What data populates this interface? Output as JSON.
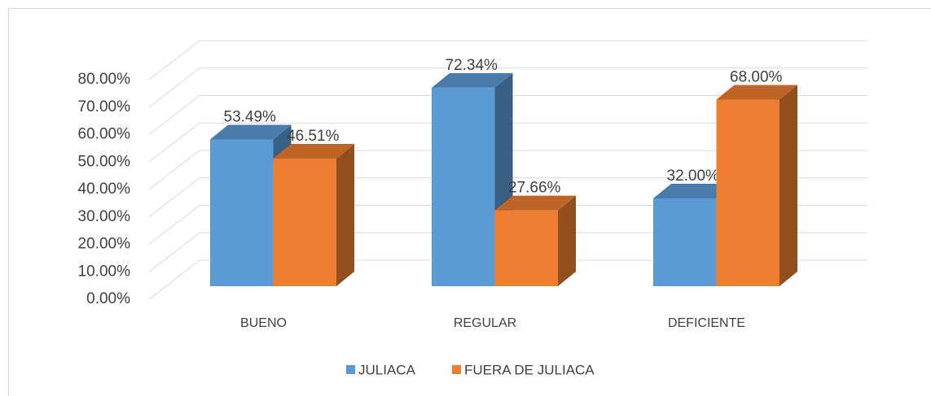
{
  "chart_data": {
    "type": "bar3d",
    "categories": [
      "BUENO",
      "REGULAR",
      "DEFICIENTE"
    ],
    "series": [
      {
        "name": "JULIACA",
        "color": "#5b9bd5",
        "values": [
          53.49,
          72.34,
          32.0
        ],
        "value_labels": [
          "53.49%",
          "72.34%",
          "32.00%"
        ]
      },
      {
        "name": "FUERA DE JULIACA",
        "color": "#ed7d31",
        "values": [
          46.51,
          27.66,
          68.0
        ],
        "value_labels": [
          "46.51%",
          "27.66%",
          "68.00%"
        ]
      }
    ],
    "ylim": [
      0,
      80
    ],
    "yticks": [
      {
        "value": 0,
        "label": "0.00%"
      },
      {
        "value": 10,
        "label": "10.00%"
      },
      {
        "value": 20,
        "label": "20.00%"
      },
      {
        "value": 30,
        "label": "30.00%"
      },
      {
        "value": 40,
        "label": "40.00%"
      },
      {
        "value": 50,
        "label": "50.00%"
      },
      {
        "value": 60,
        "label": "60.00%"
      },
      {
        "value": 70,
        "label": "70.00%"
      },
      {
        "value": 80,
        "label": "80.00%"
      }
    ],
    "grid": true,
    "legend": "bottom"
  }
}
